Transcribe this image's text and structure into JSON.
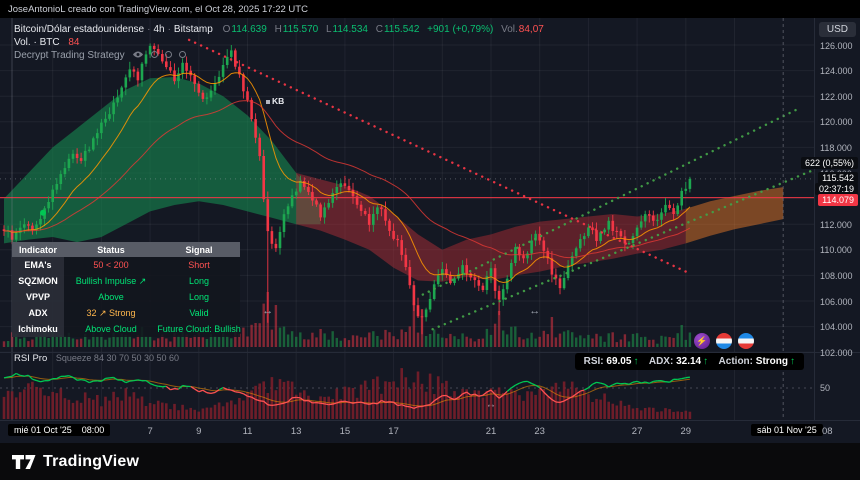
{
  "attribution": "JoseAntonioL creado con TradingView.com, el Oct 28, 2025 17:22 UTC",
  "currency_button": "USD",
  "header": {
    "symbol": "Bitcoin/Dólar estadounidense",
    "separator": "·",
    "interval": "4h",
    "exchange": "Bitstamp",
    "ohlc": {
      "o_label": "O",
      "o": "114.639",
      "h_label": "H",
      "h": "115.570",
      "l_label": "L",
      "l": "114.534",
      "c_label": "C",
      "c": "115.542",
      "change": "+901 (+0,79%)",
      "vol_label": "Vol.",
      "vol": "84,07"
    },
    "volume_legend": {
      "label": "Vol. · BTC",
      "value": "84"
    },
    "strategy_name": "Decrypt Trading Strategy"
  },
  "kb_marker": "KB",
  "indicator_table": {
    "headers": [
      "Indicator",
      "Status",
      "Signal"
    ],
    "rows": [
      {
        "name": "EMA's",
        "status": "50 < 200",
        "status_color": "#ff5252",
        "signal": "Short",
        "signal_color": "#ff5252"
      },
      {
        "name": "SQZMON",
        "status": "Bullish Impulse ↗",
        "status_color": "#00e676",
        "signal": "Long",
        "signal_color": "#00e676"
      },
      {
        "name": "VPVP",
        "status": "Above",
        "status_color": "#00e676",
        "signal": "Long",
        "signal_color": "#00e676"
      },
      {
        "name": "ADX",
        "status": "32 ↗ Strong",
        "status_color": "#ffb74d",
        "signal": "Valid",
        "signal_color": "#00e676"
      },
      {
        "name": "Ichimoku",
        "status": "Above Cloud",
        "status_color": "#00e676",
        "signal": "Future Cloud: Bullish",
        "signal_color": "#00e676"
      }
    ]
  },
  "price_axis": {
    "labels": [
      "126.000",
      "124.000",
      "122.000",
      "120.000",
      "118.000",
      "116.000",
      "114.000",
      "112.000",
      "110.000",
      "108.000",
      "106.000",
      "104.000",
      "102.000"
    ],
    "top_value": 126,
    "step": 2,
    "badges": {
      "pl": "622 (0,55%)",
      "last": "115.542",
      "countdown": "02:37:19",
      "price_line": "114.079"
    },
    "rsi_scale": "50"
  },
  "time_axis": {
    "start_date": "mié 01 Oct '25",
    "start_time": "08:00",
    "ticks": [
      "7",
      "9",
      "11",
      "13",
      "15",
      "17",
      "21",
      "23",
      "27",
      "29"
    ],
    "end_date": "sáb 01 Nov '25",
    "end_tick": "08"
  },
  "rsi_pane": {
    "title": "RSI Pro",
    "params": "Squeeze 84 30 70 50 30 50 60",
    "badge": {
      "rsi_label": "RSI:",
      "rsi_value": "69.05",
      "adx_label": "ADX:",
      "adx_value": "32.14",
      "action_label": "Action:",
      "action_value": "Strong",
      "arrow": "↑"
    }
  },
  "footer": {
    "logo_text": "TradingView"
  },
  "colors": {
    "up": "#1da750",
    "down": "#f23645",
    "accent_green": "#00c853",
    "accent_red": "#ff5252",
    "price_line_red": "#f23645"
  },
  "chart_data": {
    "type": "candlestick",
    "interval": "4h",
    "price_range": [
      102000,
      126000
    ],
    "last_price": 115.542,
    "price_line": 114.079,
    "close_anchors": [
      [
        1,
        111.6
      ],
      [
        1.4,
        110.8
      ],
      [
        1.8,
        112.2
      ],
      [
        2.2,
        111.5
      ],
      [
        2.6,
        112.9
      ],
      [
        3,
        114.6
      ],
      [
        3.4,
        116.2
      ],
      [
        3.8,
        117.6
      ],
      [
        4.2,
        117.0
      ],
      [
        4.6,
        118.4
      ],
      [
        5,
        119.8
      ],
      [
        5.4,
        121.0
      ],
      [
        5.8,
        122.4
      ],
      [
        6.2,
        124.2
      ],
      [
        6.5,
        123.5
      ],
      [
        6.8,
        125.0
      ],
      [
        7.1,
        126.0
      ],
      [
        7.4,
        125.2
      ],
      [
        7.7,
        124.3
      ],
      [
        8,
        123.4
      ],
      [
        8.4,
        124.6
      ],
      [
        8.8,
        123.2
      ],
      [
        9.2,
        121.8
      ],
      [
        9.6,
        122.9
      ],
      [
        10,
        124.4
      ],
      [
        10.3,
        125.6
      ],
      [
        10.6,
        124.0
      ],
      [
        10.9,
        122.2
      ],
      [
        11.2,
        120.0
      ],
      [
        11.5,
        117.5
      ],
      [
        11.8,
        111.5
      ],
      [
        12.1,
        109.6
      ],
      [
        12.4,
        112.0
      ],
      [
        12.8,
        114.2
      ],
      [
        13.2,
        115.4
      ],
      [
        13.6,
        114.3
      ],
      [
        14,
        112.8
      ],
      [
        14.4,
        114.0
      ],
      [
        14.8,
        115.5
      ],
      [
        15.2,
        114.6
      ],
      [
        15.6,
        113.0
      ],
      [
        16,
        112.2
      ],
      [
        16.4,
        113.5
      ],
      [
        16.8,
        111.8
      ],
      [
        17.2,
        110.4
      ],
      [
        17.5,
        108.7
      ],
      [
        17.8,
        106.0
      ],
      [
        18.1,
        104.3
      ],
      [
        18.4,
        105.8
      ],
      [
        18.7,
        107.6
      ],
      [
        19,
        108.4
      ],
      [
        19.4,
        107.1
      ],
      [
        19.8,
        108.8
      ],
      [
        20.2,
        107.9
      ],
      [
        20.6,
        106.7
      ],
      [
        21,
        108.5
      ],
      [
        21.3,
        105.8
      ],
      [
        21.7,
        107.9
      ],
      [
        22,
        110.2
      ],
      [
        22.4,
        109.3
      ],
      [
        22.8,
        111.1
      ],
      [
        23.2,
        110.0
      ],
      [
        23.5,
        108.3
      ],
      [
        23.9,
        106.9
      ],
      [
        24.2,
        108.8
      ],
      [
        24.6,
        110.4
      ],
      [
        25,
        111.6
      ],
      [
        25.4,
        110.8
      ],
      [
        25.8,
        112.2
      ],
      [
        26.2,
        111.2
      ],
      [
        26.6,
        110.2
      ],
      [
        27,
        111.8
      ],
      [
        27.4,
        113.0
      ],
      [
        27.8,
        112.2
      ],
      [
        28.2,
        113.6
      ],
      [
        28.5,
        112.9
      ],
      [
        28.8,
        114.3
      ],
      [
        29,
        114.8
      ],
      [
        29.2,
        115.542
      ]
    ],
    "wick_events": [
      [
        11.83,
        104.3
      ],
      [
        18.17,
        103.4
      ],
      [
        21.33,
        104.9
      ]
    ],
    "volume_spikes": [
      [
        11.83,
        55
      ],
      [
        12.17,
        42
      ],
      [
        17.83,
        44
      ],
      [
        18.17,
        38
      ],
      [
        21.33,
        36
      ],
      [
        23.5,
        30
      ],
      [
        28.83,
        22
      ]
    ],
    "clouds": [
      {
        "color": "rgba(22,138,80,0.6)",
        "upper": [
          [
            1,
            114
          ],
          [
            2,
            116
          ],
          [
            3,
            118
          ],
          [
            4,
            119.5
          ],
          [
            5,
            121
          ],
          [
            6,
            122.5
          ],
          [
            7,
            123.4
          ],
          [
            8,
            123.5
          ],
          [
            9,
            123
          ],
          [
            10,
            122
          ],
          [
            11,
            120.5
          ],
          [
            12,
            118.5
          ],
          [
            13,
            116
          ],
          [
            14,
            113.5
          ]
        ],
        "lower": [
          [
            1,
            110.5
          ],
          [
            2,
            110.8
          ],
          [
            3,
            111
          ],
          [
            4,
            110.6
          ],
          [
            5,
            111
          ],
          [
            6,
            112
          ],
          [
            7,
            113
          ],
          [
            8,
            113.5
          ],
          [
            9,
            113.8
          ],
          [
            10,
            113.5
          ],
          [
            11,
            113
          ],
          [
            12,
            112.5
          ],
          [
            13,
            112
          ],
          [
            14,
            112
          ]
        ]
      },
      {
        "color": "rgba(190,48,58,0.45)",
        "upper": [
          [
            13,
            116
          ],
          [
            14,
            115.5
          ],
          [
            15,
            115
          ],
          [
            16,
            114.2
          ],
          [
            17,
            112.8
          ],
          [
            18,
            111.2
          ],
          [
            19,
            110
          ]
        ],
        "lower": [
          [
            13,
            112
          ],
          [
            14,
            111.5
          ],
          [
            15,
            110.8
          ],
          [
            16,
            110
          ],
          [
            17,
            108.6
          ],
          [
            18,
            107.6
          ],
          [
            19,
            107.5
          ]
        ]
      },
      {
        "color": "rgba(165,42,50,0.5)",
        "upper": [
          [
            19,
            110
          ],
          [
            20,
            110.8
          ],
          [
            21,
            111.2
          ],
          [
            22,
            111.8
          ],
          [
            23,
            112.2
          ],
          [
            24,
            112.4
          ],
          [
            25,
            112.6
          ],
          [
            26,
            112.8
          ],
          [
            27,
            112.6
          ],
          [
            28,
            112.8
          ],
          [
            29,
            113.2
          ]
        ],
        "lower": [
          [
            19,
            107.5
          ],
          [
            20,
            107.9
          ],
          [
            21,
            107.6
          ],
          [
            22,
            108
          ],
          [
            23,
            108.3
          ],
          [
            24,
            108.7
          ],
          [
            25,
            109
          ],
          [
            26,
            109.3
          ],
          [
            27,
            109.7
          ],
          [
            28,
            110
          ],
          [
            29,
            110.5
          ]
        ]
      },
      {
        "color": "rgba(226,118,40,0.5)",
        "upper": [
          [
            29,
            113.2
          ],
          [
            30,
            113.8
          ],
          [
            31,
            114.2
          ],
          [
            32,
            114.6
          ],
          [
            33,
            114.9
          ]
        ],
        "lower": [
          [
            29,
            110.5
          ],
          [
            30,
            111.1
          ],
          [
            31,
            111.6
          ],
          [
            32,
            112
          ],
          [
            33,
            112.4
          ]
        ]
      }
    ],
    "trend_lines": [
      {
        "from": [
          8.6,
          126.4
        ],
        "to": [
          29.0,
          108.3
        ],
        "color": "#f23645"
      },
      {
        "from": [
          18.2,
          106.5
        ],
        "to": [
          33.6,
          121.0
        ],
        "color": "#43a047"
      },
      {
        "from": [
          18.6,
          103.8
        ],
        "to": [
          34.2,
          116.2
        ],
        "color": "#43a047"
      }
    ],
    "rsi_anchors": [
      [
        1,
        66
      ],
      [
        1.5,
        72
      ],
      [
        2,
        68
      ],
      [
        2.5,
        60
      ],
      [
        3,
        65
      ],
      [
        3.5,
        70
      ],
      [
        4,
        64
      ],
      [
        4.5,
        58
      ],
      [
        5,
        62
      ],
      [
        5.5,
        66
      ],
      [
        6,
        60
      ],
      [
        6.5,
        64
      ],
      [
        7,
        58
      ],
      [
        7.5,
        52
      ],
      [
        8,
        48
      ],
      [
        8.5,
        54
      ],
      [
        9,
        46
      ],
      [
        9.5,
        42
      ],
      [
        10,
        50
      ],
      [
        10.5,
        46
      ],
      [
        11,
        38
      ],
      [
        11.5,
        30
      ],
      [
        12,
        22
      ],
      [
        12.5,
        28
      ],
      [
        13,
        35
      ],
      [
        13.5,
        30
      ],
      [
        14,
        26
      ],
      [
        14.5,
        24
      ],
      [
        15,
        30
      ],
      [
        15.5,
        27
      ],
      [
        16,
        24
      ],
      [
        16.5,
        29
      ],
      [
        17,
        26
      ],
      [
        17.5,
        22
      ],
      [
        18,
        19
      ],
      [
        18.5,
        26
      ],
      [
        19,
        38
      ],
      [
        19.5,
        34
      ],
      [
        20,
        42
      ],
      [
        20.5,
        38
      ],
      [
        21,
        46
      ],
      [
        21.3,
        34
      ],
      [
        21.7,
        44
      ],
      [
        22,
        54
      ],
      [
        22.5,
        60
      ],
      [
        23,
        50
      ],
      [
        23.4,
        34
      ],
      [
        23.8,
        26
      ],
      [
        24.2,
        32
      ],
      [
        24.6,
        42
      ],
      [
        25,
        52
      ],
      [
        25.4,
        58
      ],
      [
        25.8,
        52
      ],
      [
        26.2,
        60
      ],
      [
        26.6,
        54
      ],
      [
        27,
        61
      ],
      [
        27.4,
        57
      ],
      [
        27.8,
        63
      ],
      [
        28.2,
        59
      ],
      [
        28.6,
        65
      ],
      [
        29,
        67
      ],
      [
        29.2,
        69
      ]
    ],
    "squeeze_anchors": [
      [
        1,
        26
      ],
      [
        2,
        34
      ],
      [
        3,
        28
      ],
      [
        4,
        22
      ],
      [
        5,
        18
      ],
      [
        6,
        24
      ],
      [
        7,
        16
      ],
      [
        8,
        12
      ],
      [
        9,
        9
      ],
      [
        10,
        14
      ],
      [
        11,
        22
      ],
      [
        12,
        34
      ],
      [
        13,
        28
      ],
      [
        14,
        22
      ],
      [
        15,
        27
      ],
      [
        16,
        33
      ],
      [
        17,
        38
      ],
      [
        18,
        42
      ],
      [
        19,
        32
      ],
      [
        20,
        24
      ],
      [
        21,
        30
      ],
      [
        22,
        22
      ],
      [
        23,
        27
      ],
      [
        24,
        34
      ],
      [
        25,
        25
      ],
      [
        26,
        18
      ],
      [
        27,
        13
      ],
      [
        28,
        9
      ],
      [
        29,
        7
      ]
    ],
    "markers": {
      "entry_dot": [
        2.6,
        112.9
      ],
      "range_arrows": [
        {
          "pane": "main",
          "day": 11.83,
          "price": 105.2
        },
        {
          "pane": "main",
          "day": 22.8,
          "price": 105.2
        },
        {
          "pane": "rsi",
          "day": 21.0,
          "value": 24
        }
      ]
    },
    "vertical_line_day": 33
  }
}
